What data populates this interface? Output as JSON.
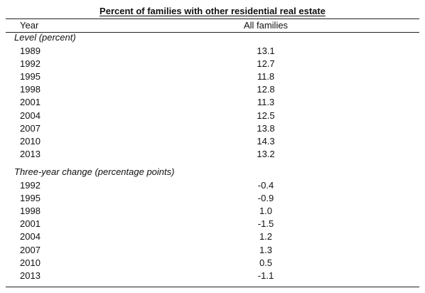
{
  "chart_data": {
    "type": "table",
    "title": "Percent of families with other residential real estate",
    "columns": [
      "Year",
      "All families"
    ],
    "sections": [
      {
        "label": "Level (percent)",
        "rows": [
          {
            "year": "1989",
            "value": "13.1"
          },
          {
            "year": "1992",
            "value": "12.7"
          },
          {
            "year": "1995",
            "value": "11.8"
          },
          {
            "year": "1998",
            "value": "12.8"
          },
          {
            "year": "2001",
            "value": "11.3"
          },
          {
            "year": "2004",
            "value": "12.5"
          },
          {
            "year": "2007",
            "value": "13.8"
          },
          {
            "year": "2010",
            "value": "14.3"
          },
          {
            "year": "2013",
            "value": "13.2"
          }
        ]
      },
      {
        "label": "Three-year change (percentage points)",
        "rows": [
          {
            "year": "1992",
            "value": "-0.4"
          },
          {
            "year": "1995",
            "value": "-0.9"
          },
          {
            "year": "1998",
            "value": "1.0"
          },
          {
            "year": "2001",
            "value": "-1.5"
          },
          {
            "year": "2004",
            "value": "1.2"
          },
          {
            "year": "2007",
            "value": "1.3"
          },
          {
            "year": "2010",
            "value": "0.5"
          },
          {
            "year": "2013",
            "value": "-1.1"
          }
        ]
      }
    ]
  }
}
